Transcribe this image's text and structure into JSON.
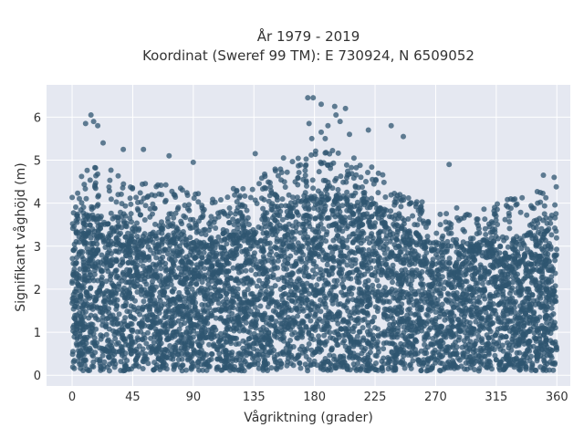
{
  "chart_data": {
    "type": "scatter",
    "title_lines": [
      "År 1979 - 2019",
      "Koordinat (Sweref 99 TM): E 730924, N 6509052"
    ],
    "xlabel": "Vågriktning (grader)",
    "ylabel": "Signifikant våghöjd (m)",
    "xlim": [
      -19,
      370
    ],
    "ylim": [
      -0.25,
      6.75
    ],
    "xticks": [
      0,
      45,
      90,
      135,
      180,
      225,
      270,
      315,
      360
    ],
    "yticks": [
      0,
      1,
      2,
      3,
      4,
      5,
      6
    ],
    "grid": true,
    "marker_color": "#2f5570",
    "background_color": "#e5e8f1",
    "density_note": "very dense point cloud; upper envelope listed below",
    "envelope": {
      "x": [
        0,
        20,
        45,
        70,
        90,
        110,
        135,
        155,
        180,
        200,
        225,
        245,
        270,
        300,
        330,
        360
      ],
      "dense_top": [
        3.5,
        3.7,
        3.4,
        3.3,
        3.1,
        3.1,
        3.5,
        3.9,
        4.1,
        4.1,
        3.9,
        3.4,
        3.0,
        3.0,
        3.2,
        3.4
      ],
      "sparse_top": [
        4.6,
        5.0,
        4.5,
        4.5,
        4.3,
        4.2,
        4.6,
        4.9,
        5.3,
        5.2,
        4.9,
        4.3,
        3.9,
        3.9,
        4.2,
        4.4
      ]
    },
    "outliers": [
      {
        "x": 14,
        "y": 6.05
      },
      {
        "x": 16,
        "y": 5.9
      },
      {
        "x": 10,
        "y": 5.85
      },
      {
        "x": 19,
        "y": 5.8
      },
      {
        "x": 175,
        "y": 6.45
      },
      {
        "x": 179,
        "y": 6.45
      },
      {
        "x": 185,
        "y": 6.3
      },
      {
        "x": 195,
        "y": 6.25
      },
      {
        "x": 203,
        "y": 6.2
      },
      {
        "x": 196,
        "y": 6.05
      },
      {
        "x": 176,
        "y": 5.85
      },
      {
        "x": 190,
        "y": 5.8
      },
      {
        "x": 199,
        "y": 5.9
      },
      {
        "x": 185,
        "y": 5.65
      },
      {
        "x": 178,
        "y": 5.5
      },
      {
        "x": 188,
        "y": 5.5
      },
      {
        "x": 206,
        "y": 5.6
      },
      {
        "x": 220,
        "y": 5.7
      },
      {
        "x": 237,
        "y": 5.8
      },
      {
        "x": 246,
        "y": 5.55
      },
      {
        "x": 23,
        "y": 5.4
      },
      {
        "x": 53,
        "y": 5.25
      },
      {
        "x": 38,
        "y": 5.25
      },
      {
        "x": 72,
        "y": 5.1
      },
      {
        "x": 136,
        "y": 5.15
      },
      {
        "x": 157,
        "y": 5.05
      },
      {
        "x": 280,
        "y": 4.9
      },
      {
        "x": 90,
        "y": 4.95
      },
      {
        "x": 350,
        "y": 4.65
      },
      {
        "x": 358,
        "y": 4.6
      }
    ]
  }
}
